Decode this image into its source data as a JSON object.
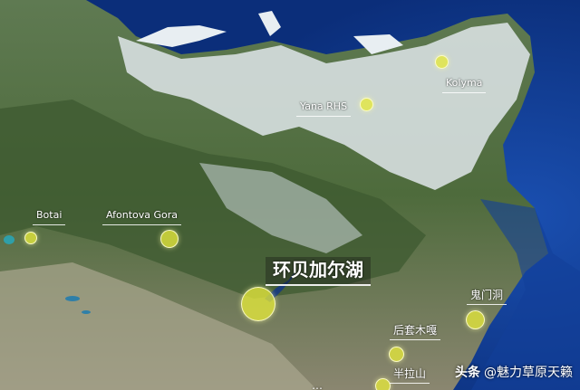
{
  "map": {
    "sites": [
      {
        "id": "yana-rhs",
        "label": "Yana RHS"
      },
      {
        "id": "kolyma",
        "label": "Kolyma"
      },
      {
        "id": "botai",
        "label": "Botai"
      },
      {
        "id": "afontova-gora",
        "label": "Afontova Gora"
      },
      {
        "id": "lake-baikal",
        "label": "环贝加尔湖"
      },
      {
        "id": "devils-gate-cave",
        "label": "鬼门洞"
      },
      {
        "id": "houtaomuga",
        "label": "后套木嘎"
      },
      {
        "id": "banlashan",
        "label": "半拉山"
      },
      {
        "id": "bottom-partial",
        "label": "…"
      }
    ]
  },
  "watermark": {
    "platform": "头条",
    "author": "@魅力草原天籁"
  }
}
